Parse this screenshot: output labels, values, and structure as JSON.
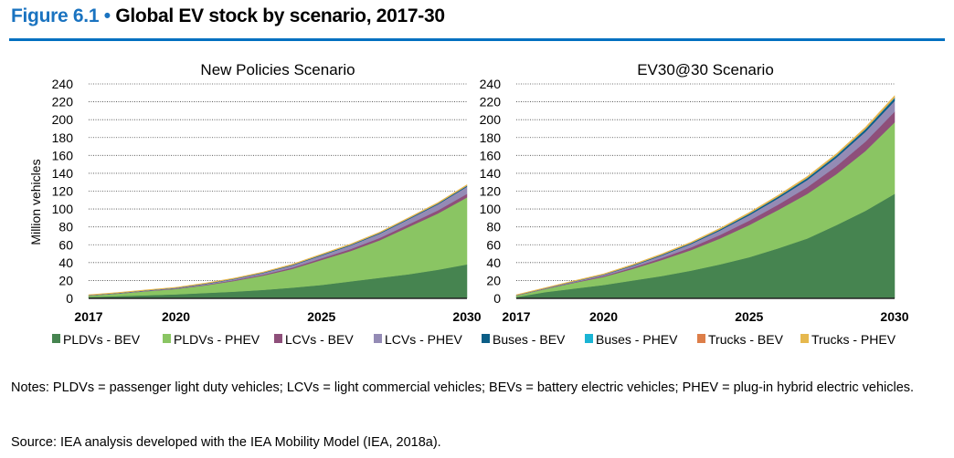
{
  "header": {
    "figure_label": "Figure 6.1",
    "bullet": "•",
    "title": "Global EV stock by scenario, 2017-30",
    "accent_color": "#0070c0"
  },
  "chart_data": [
    {
      "type": "area",
      "stacked": true,
      "title": "New Policies Scenario",
      "ylabel": "Million vehicles",
      "xlabel": "",
      "x": [
        2017,
        2018,
        2019,
        2020,
        2021,
        2022,
        2023,
        2024,
        2025,
        2026,
        2027,
        2028,
        2029,
        2030
      ],
      "xticks": [
        "2017",
        "2020",
        "2025",
        "2030"
      ],
      "yticks": [
        "0",
        "20",
        "40",
        "60",
        "80",
        "100",
        "120",
        "140",
        "160",
        "180",
        "200",
        "220",
        "240"
      ],
      "ylim": [
        0,
        240
      ],
      "grid": "horizontal dotted",
      "series": [
        {
          "name": "PLDVs - BEV",
          "color": "#468450",
          "values": [
            1.5,
            2.5,
            3.5,
            4.5,
            6,
            7.5,
            9.5,
            12,
            15,
            19,
            23,
            27,
            32,
            38
          ]
        },
        {
          "name": "PLDVs - PHEV",
          "color": "#8ac563",
          "values": [
            1.5,
            2.8,
            4.5,
            6,
            8.5,
            12,
            16,
            21,
            28,
            34,
            42,
            53,
            63,
            75
          ]
        },
        {
          "name": "LCVs - BEV",
          "color": "#8e4f7a",
          "values": [
            0.1,
            0.2,
            0.3,
            0.4,
            0.6,
            0.8,
            1.1,
            1.4,
            1.8,
            2.2,
            2.6,
            3.0,
            3.5,
            4
          ]
        },
        {
          "name": "LCVs - PHEV",
          "color": "#948bb5",
          "values": [
            0.2,
            0.3,
            0.4,
            0.6,
            0.9,
            1.3,
            1.8,
            2.5,
            3.2,
            4.0,
            4.8,
            5.6,
            6.7,
            8
          ]
        },
        {
          "name": "Buses - BEV",
          "color": "#0b5e86",
          "values": [
            0.3,
            0.3,
            0.4,
            0.4,
            0.5,
            0.5,
            0.6,
            0.6,
            0.7,
            0.7,
            0.8,
            0.8,
            0.9,
            1
          ]
        },
        {
          "name": "Buses - PHEV",
          "color": "#1ab4d4",
          "values": [
            0,
            0,
            0,
            0,
            0,
            0,
            0,
            0,
            0.1,
            0.1,
            0.1,
            0.1,
            0.1,
            0.1
          ]
        },
        {
          "name": "Trucks - BEV",
          "color": "#dd7e49",
          "values": [
            0,
            0,
            0,
            0,
            0,
            0,
            0,
            0.1,
            0.1,
            0.1,
            0.1,
            0.2,
            0.2,
            0.2
          ]
        },
        {
          "name": "Trucks - PHEV",
          "color": "#e6b84e",
          "values": [
            0.5,
            0.5,
            0.5,
            0.5,
            0.6,
            0.6,
            0.6,
            0.7,
            0.7,
            0.8,
            0.8,
            0.8,
            0.9,
            1
          ]
        }
      ]
    },
    {
      "type": "area",
      "stacked": true,
      "title": "EV30@30 Scenario",
      "ylabel": "",
      "xlabel": "",
      "x": [
        2017,
        2018,
        2019,
        2020,
        2021,
        2022,
        2023,
        2024,
        2025,
        2026,
        2027,
        2028,
        2029,
        2030
      ],
      "xticks": [
        "2017",
        "2020",
        "2025",
        "2030"
      ],
      "yticks": [
        "0",
        "20",
        "40",
        "60",
        "80",
        "100",
        "120",
        "140",
        "160",
        "180",
        "200",
        "220",
        "240"
      ],
      "ylim": [
        0,
        240
      ],
      "grid": "horizontal dotted",
      "series": [
        {
          "name": "PLDVs - BEV",
          "color": "#468450",
          "values": [
            1.5,
            7,
            11,
            15,
            20,
            25,
            31,
            38,
            46,
            56,
            67,
            82,
            98,
            117
          ]
        },
        {
          "name": "PLDVs - PHEV",
          "color": "#8ac563",
          "values": [
            1.5,
            3.5,
            6.5,
            9,
            13,
            18,
            23,
            29,
            36,
            43,
            50,
            57,
            67,
            80
          ]
        },
        {
          "name": "LCVs - BEV",
          "color": "#8e4f7a",
          "values": [
            0.1,
            0.3,
            0.6,
            1,
            1.5,
            2.2,
            3,
            4,
            5,
            6,
            7.5,
            9,
            10.5,
            12
          ]
        },
        {
          "name": "LCVs - PHEV",
          "color": "#948bb5",
          "values": [
            0.2,
            0.4,
            0.8,
            1.3,
            1.9,
            2.8,
            3.8,
            5,
            6,
            7,
            8,
            9.5,
            11,
            12
          ]
        },
        {
          "name": "Buses - BEV",
          "color": "#0b5e86",
          "values": [
            0.3,
            0.3,
            0.4,
            0.5,
            0.6,
            0.8,
            1,
            1.2,
            1.5,
            1.8,
            2,
            2.3,
            2.6,
            3
          ]
        },
        {
          "name": "Buses - PHEV",
          "color": "#1ab4d4",
          "values": [
            0,
            0,
            0,
            0,
            0.1,
            0.1,
            0.1,
            0.1,
            0.2,
            0.2,
            0.3,
            0.3,
            0.4,
            0.5
          ]
        },
        {
          "name": "Trucks - BEV",
          "color": "#dd7e49",
          "values": [
            0,
            0,
            0,
            0,
            0.1,
            0.1,
            0.1,
            0.1,
            0.2,
            0.2,
            0.3,
            0.3,
            0.4,
            0.5
          ]
        },
        {
          "name": "Trucks - PHEV",
          "color": "#e6b84e",
          "values": [
            0.5,
            0.5,
            0.6,
            0.7,
            0.8,
            0.9,
            1,
            1.1,
            1.2,
            1.3,
            1.5,
            1.6,
            1.8,
            2
          ]
        }
      ]
    }
  ],
  "notes": "Notes: PLDVs = passenger light duty vehicles; LCVs = light commercial vehicles; BEVs = battery electric vehicles; PHEV = plug-in hybrid electric vehicles.",
  "source": "Source: IEA analysis developed with the IEA Mobility Model (IEA, 2018a)."
}
